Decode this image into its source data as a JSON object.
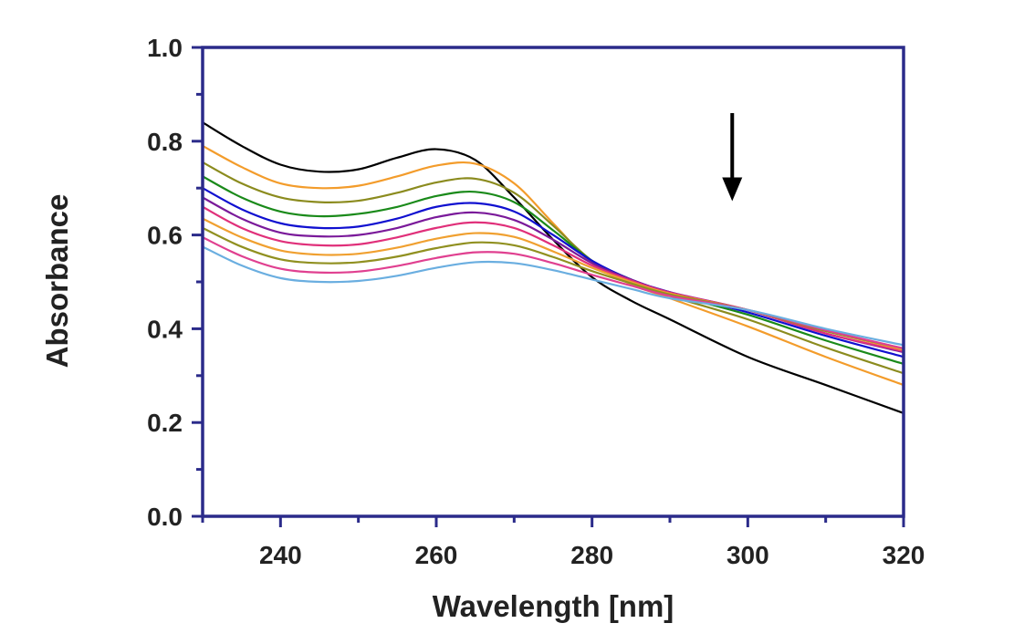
{
  "chart_data": {
    "type": "line",
    "title": "",
    "xlabel": "Wavelength [nm]",
    "ylabel": "Absorbance",
    "xlim": [
      230,
      320
    ],
    "ylim": [
      0.0,
      1.0
    ],
    "x_ticks": [
      "240",
      "260",
      "280",
      "300",
      "320"
    ],
    "y_ticks": [
      "0.0",
      "0.2",
      "0.4",
      "0.6",
      "0.8",
      "1.0"
    ],
    "grid": false,
    "legend": "none",
    "frame_color": "#2b2b8a",
    "annotation": {
      "type": "arrow-down",
      "x": 298,
      "y_from": 0.86,
      "y_to": 0.68
    },
    "x": [
      230,
      235,
      240,
      245,
      250,
      255,
      260,
      265,
      270,
      275,
      280,
      285,
      290,
      300,
      310,
      320
    ],
    "series": [
      {
        "color": "#000000",
        "values": [
          0.84,
          0.79,
          0.75,
          0.735,
          0.74,
          0.765,
          0.783,
          0.76,
          0.68,
          0.59,
          0.51,
          0.46,
          0.42,
          0.34,
          0.28,
          0.22
        ]
      },
      {
        "color": "#f39c2b",
        "values": [
          0.79,
          0.745,
          0.71,
          0.7,
          0.705,
          0.725,
          0.748,
          0.752,
          0.71,
          0.625,
          0.54,
          0.495,
          0.465,
          0.405,
          0.34,
          0.28
        ]
      },
      {
        "color": "#8b8b1e",
        "values": [
          0.755,
          0.71,
          0.68,
          0.67,
          0.673,
          0.69,
          0.712,
          0.72,
          0.69,
          0.62,
          0.545,
          0.5,
          0.47,
          0.42,
          0.36,
          0.305
        ]
      },
      {
        "color": "#1a8a1a",
        "values": [
          0.725,
          0.68,
          0.65,
          0.64,
          0.645,
          0.66,
          0.683,
          0.692,
          0.67,
          0.61,
          0.545,
          0.505,
          0.475,
          0.43,
          0.375,
          0.325
        ]
      },
      {
        "color": "#1010d0",
        "values": [
          0.7,
          0.655,
          0.625,
          0.615,
          0.618,
          0.635,
          0.66,
          0.668,
          0.65,
          0.6,
          0.545,
          0.505,
          0.478,
          0.435,
          0.385,
          0.34
        ]
      },
      {
        "color": "#7a1a9a",
        "values": [
          0.68,
          0.635,
          0.605,
          0.597,
          0.6,
          0.615,
          0.638,
          0.648,
          0.632,
          0.59,
          0.54,
          0.505,
          0.478,
          0.44,
          0.39,
          0.35
        ]
      },
      {
        "color": "#e0307a",
        "values": [
          0.66,
          0.615,
          0.587,
          0.578,
          0.58,
          0.595,
          0.615,
          0.627,
          0.615,
          0.578,
          0.535,
          0.503,
          0.477,
          0.44,
          0.39,
          0.352
        ]
      },
      {
        "color": "#f0a030",
        "values": [
          0.635,
          0.595,
          0.567,
          0.558,
          0.56,
          0.573,
          0.592,
          0.604,
          0.596,
          0.565,
          0.53,
          0.5,
          0.475,
          0.44,
          0.395,
          0.355
        ]
      },
      {
        "color": "#909020",
        "values": [
          0.615,
          0.575,
          0.548,
          0.54,
          0.542,
          0.554,
          0.572,
          0.584,
          0.578,
          0.553,
          0.523,
          0.497,
          0.473,
          0.44,
          0.395,
          0.358
        ]
      },
      {
        "color": "#e04090",
        "values": [
          0.595,
          0.555,
          0.528,
          0.52,
          0.522,
          0.534,
          0.551,
          0.563,
          0.56,
          0.54,
          0.515,
          0.492,
          0.47,
          0.44,
          0.397,
          0.358
        ]
      },
      {
        "color": "#6aaee0",
        "values": [
          0.575,
          0.535,
          0.508,
          0.5,
          0.502,
          0.513,
          0.53,
          0.542,
          0.54,
          0.525,
          0.505,
          0.485,
          0.465,
          0.44,
          0.4,
          0.365
        ]
      }
    ]
  }
}
